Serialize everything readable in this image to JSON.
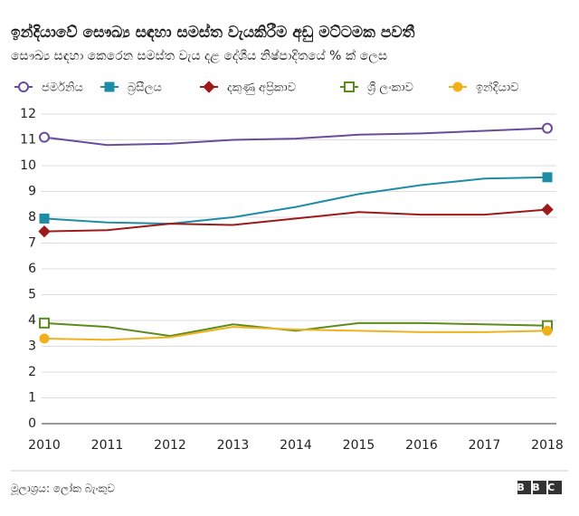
{
  "chart_data": {
    "type": "line",
    "title": "ඉන්දියාවේ සෞඛ්‍ය සඳහා සමස්ත වැයකිරීම අඩු මට්ටමක පවතී",
    "subtitle": "සෞඛ්‍ය සඳහා කෙරෙන සමස්ත වැය දළ දේශීය නිෂ්පාදිතයේ % ක් ලෙස",
    "source": "මූලාශ්‍රය: ලෝක බැංකුව",
    "logo": "BBC",
    "x": [
      2010,
      2011,
      2012,
      2013,
      2014,
      2015,
      2016,
      2017,
      2018
    ],
    "xlim": [
      2010,
      2018
    ],
    "xticks": [
      2010,
      2011,
      2012,
      2013,
      2014,
      2015,
      2016,
      2017,
      2018
    ],
    "ylim": [
      0,
      12
    ],
    "yticks": [
      0,
      1,
      2,
      3,
      4,
      5,
      6,
      7,
      8,
      9,
      10,
      11,
      12
    ],
    "grid": true,
    "series": [
      {
        "name": "ජර්මනිය",
        "color": "#6a4c9c",
        "marker": "circle-open",
        "values": [
          11.1,
          10.8,
          10.85,
          11.0,
          11.05,
          11.2,
          11.25,
          11.35,
          11.45
        ]
      },
      {
        "name": "බ්‍රසීලය",
        "color": "#1f8ca6",
        "marker": "square",
        "values": [
          7.95,
          7.8,
          7.75,
          8.0,
          8.4,
          8.9,
          9.25,
          9.5,
          9.55
        ]
      },
      {
        "name": "දකුණු අප්‍රිකාව",
        "color": "#9e1a1a",
        "marker": "diamond",
        "values": [
          7.45,
          7.5,
          7.75,
          7.7,
          7.95,
          8.2,
          8.1,
          8.1,
          8.3
        ]
      },
      {
        "name": "ශ්‍රී ලංකාව",
        "color": "#5c8c1e",
        "marker": "square-open",
        "values": [
          3.9,
          3.75,
          3.4,
          3.85,
          3.6,
          3.9,
          3.9,
          3.85,
          3.8
        ]
      },
      {
        "name": "ඉන්දියාව",
        "color": "#f0b21c",
        "marker": "circle",
        "values": [
          3.3,
          3.25,
          3.35,
          3.75,
          3.65,
          3.6,
          3.55,
          3.55,
          3.6
        ]
      }
    ]
  }
}
